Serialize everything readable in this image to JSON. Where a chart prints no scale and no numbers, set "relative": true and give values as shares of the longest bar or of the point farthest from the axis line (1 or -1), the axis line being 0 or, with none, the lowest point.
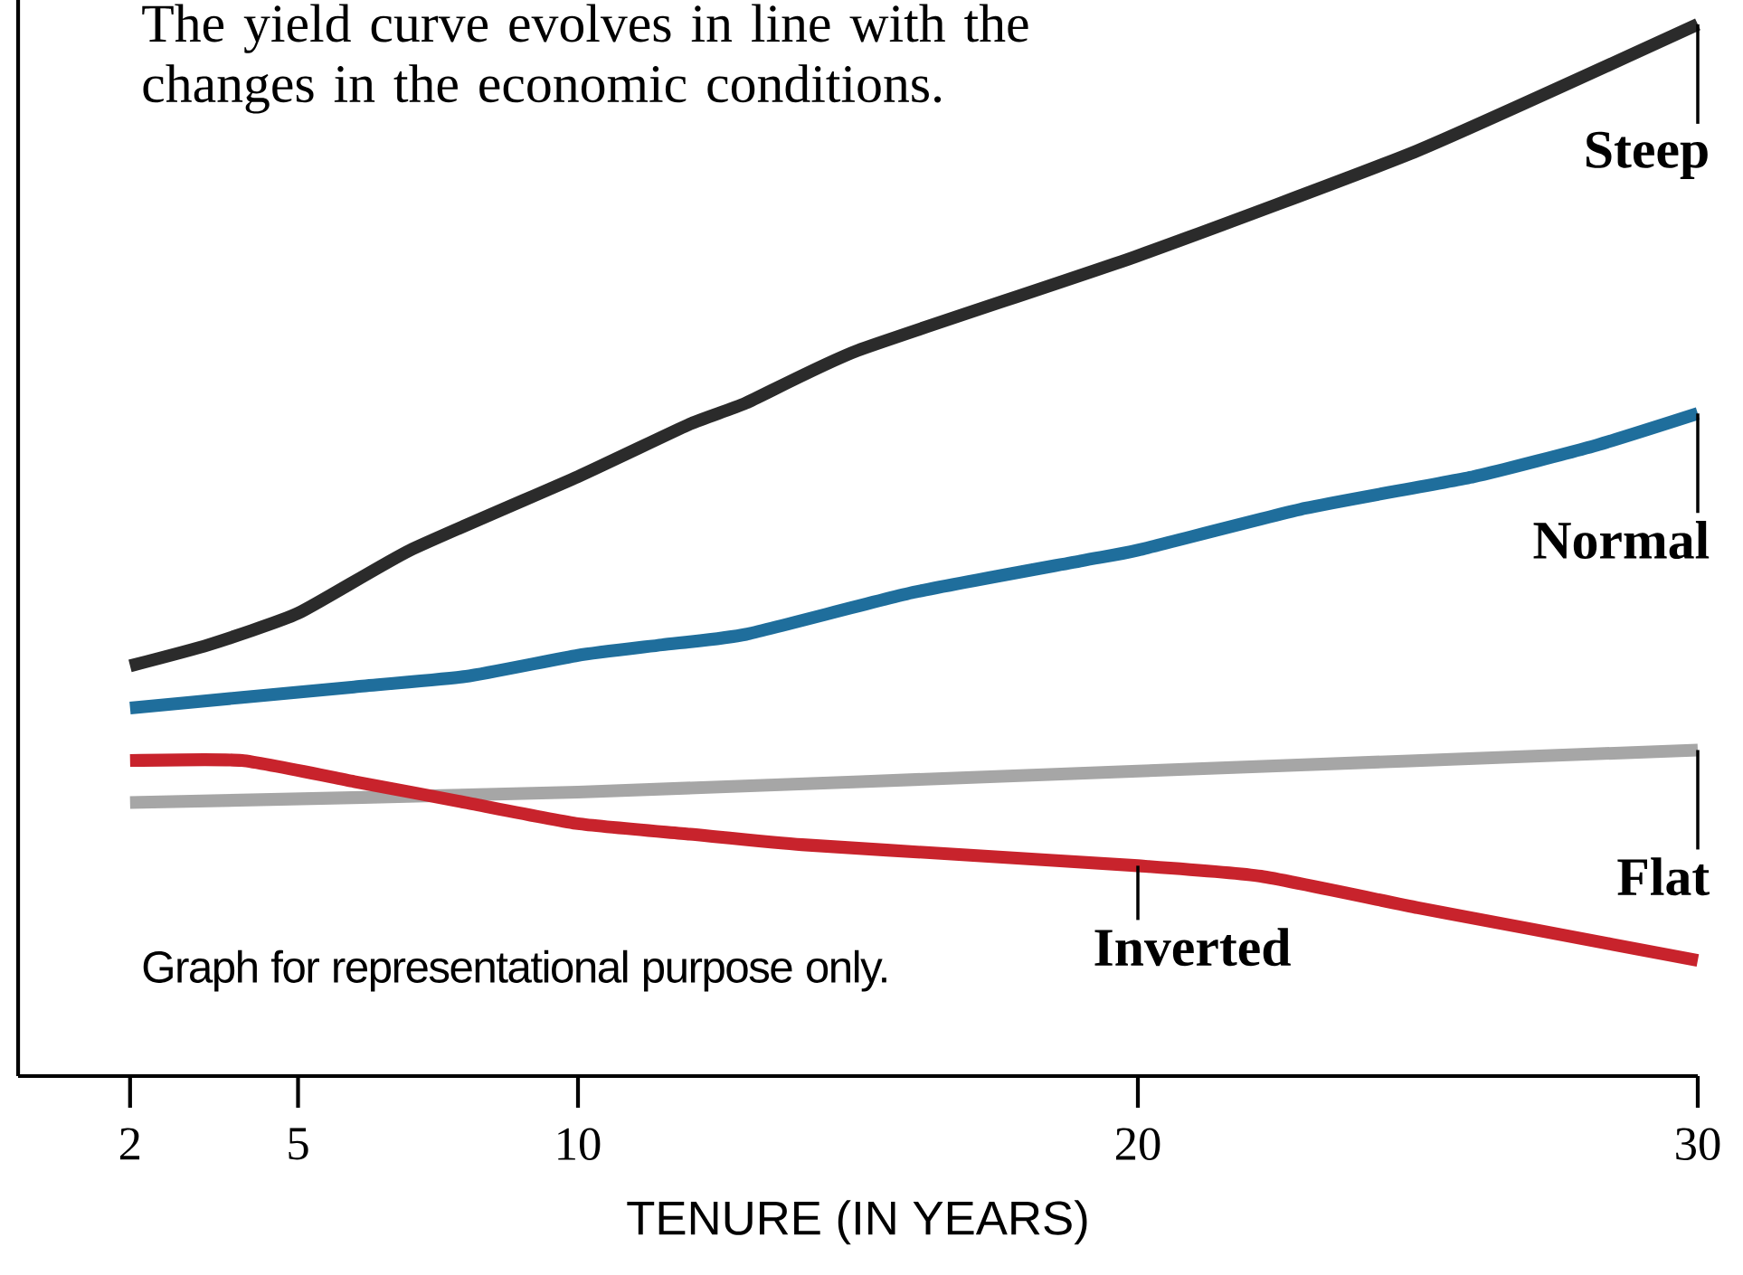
{
  "chart_data": {
    "type": "line",
    "title": "The yield curve evolves in line with the changes in the economic conditions.",
    "xlabel": "TENURE (IN YEARS)",
    "relative": true,
    "xlim": [
      0,
      30
    ],
    "xticks": [
      2,
      5,
      10,
      20,
      30
    ],
    "legend": false,
    "grid": false,
    "marker": "none",
    "line_style": "solid",
    "annotations": [
      "Graph for representational purpose only."
    ],
    "series": [
      {
        "name": "Steep",
        "color": "#2b2b2b",
        "x": [
          2,
          3.4,
          5,
          7,
          10,
          12,
          13,
          15,
          20,
          25,
          30
        ],
        "values": [
          0.39,
          0.41,
          0.44,
          0.5,
          0.57,
          0.62,
          0.64,
          0.69,
          0.78,
          0.88,
          1.0
        ]
      },
      {
        "name": "Normal",
        "color": "#1f6e9c",
        "x": [
          2,
          4,
          6,
          8,
          10,
          11.5,
          13,
          16,
          19,
          20,
          23,
          26,
          28.2,
          30
        ],
        "values": [
          0.35,
          0.36,
          0.37,
          0.38,
          0.4,
          0.41,
          0.42,
          0.46,
          0.49,
          0.5,
          0.54,
          0.57,
          0.6,
          0.63
        ]
      },
      {
        "name": "Flat",
        "color": "#a6a6a6",
        "x": [
          2,
          10,
          20,
          30
        ],
        "values": [
          0.26,
          0.27,
          0.29,
          0.31
        ]
      },
      {
        "name": "Inverted",
        "color": "#c8232c",
        "x": [
          2,
          4,
          6,
          8,
          10,
          12,
          14,
          17,
          20,
          22.2,
          25,
          27,
          30
        ],
        "values": [
          0.3,
          0.3,
          0.28,
          0.26,
          0.24,
          0.23,
          0.22,
          0.21,
          0.2,
          0.19,
          0.16,
          0.14,
          0.11
        ]
      }
    ]
  }
}
